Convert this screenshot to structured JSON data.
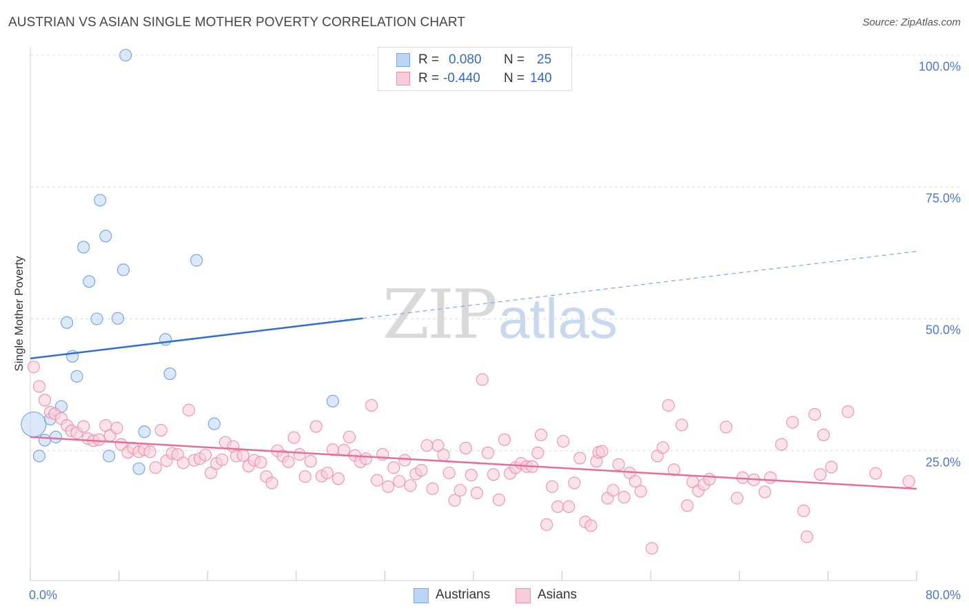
{
  "header": {
    "title": "AUSTRIAN VS ASIAN SINGLE MOTHER POVERTY CORRELATION CHART",
    "source": "Source: ZipAtlas.com"
  },
  "watermark": {
    "zip": "ZIP",
    "atlas": "atlas"
  },
  "stats": {
    "austrians": {
      "r_label": "R =",
      "r_value": "0.080",
      "n_label": "N =",
      "n_value": "25",
      "color": "#a8c8f0"
    },
    "asians": {
      "r_label": "R =",
      "r_value": "-0.440",
      "n_label": "N =",
      "n_value": "140",
      "color": "#f7b6c8"
    }
  },
  "legend": {
    "austrians": "Austrians",
    "asians": "Asians"
  },
  "chart_data": {
    "type": "scatter",
    "title": "AUSTRIAN VS ASIAN SINGLE MOTHER POVERTY CORRELATION CHART",
    "ylabel": "Single Mother Poverty",
    "xlabel": "",
    "xlim": [
      0,
      80
    ],
    "ylim": [
      0,
      105
    ],
    "x_tick_labels": {
      "min": "0.0%",
      "max": "80.0%"
    },
    "y_ticks": [
      {
        "value": 100,
        "label": "100.0%"
      },
      {
        "value": 75,
        "label": "75.0%"
      },
      {
        "value": 50,
        "label": "50.0%"
      },
      {
        "value": 25,
        "label": "25.0%"
      }
    ],
    "grid": "horizontal dashed",
    "legend_position": "bottom-center",
    "series": [
      {
        "name": "Austrians",
        "color": "#6f9fe0",
        "fill": "#bcd5f5",
        "trend": {
          "x0": 0,
          "y0": 42.5,
          "x1": 30,
          "y1": 50.1,
          "dashed_x1": 80,
          "dashed_y1": 62.8,
          "color": "#2f6fd0"
        },
        "points": [
          {
            "x": 0.3,
            "y": 30,
            "r": 18
          },
          {
            "x": 8.6,
            "y": 100
          },
          {
            "x": 6.3,
            "y": 72.5
          },
          {
            "x": 6.8,
            "y": 65.7
          },
          {
            "x": 4.8,
            "y": 63.6
          },
          {
            "x": 15,
            "y": 61.1
          },
          {
            "x": 8.4,
            "y": 59.3
          },
          {
            "x": 5.3,
            "y": 57.1
          },
          {
            "x": 6,
            "y": 50
          },
          {
            "x": 7.9,
            "y": 50.1
          },
          {
            "x": 3.3,
            "y": 49.3
          },
          {
            "x": 12.2,
            "y": 46.1
          },
          {
            "x": 3.8,
            "y": 42.9
          },
          {
            "x": 4.2,
            "y": 39.1
          },
          {
            "x": 12.6,
            "y": 39.6
          },
          {
            "x": 27.3,
            "y": 34.4
          },
          {
            "x": 2.8,
            "y": 33.4
          },
          {
            "x": 1.8,
            "y": 31
          },
          {
            "x": 16.6,
            "y": 30.1
          },
          {
            "x": 10.3,
            "y": 28.6
          },
          {
            "x": 2.3,
            "y": 27.6
          },
          {
            "x": 1.3,
            "y": 27
          },
          {
            "x": 0.8,
            "y": 24
          },
          {
            "x": 7.1,
            "y": 24
          },
          {
            "x": 9.8,
            "y": 21.6
          }
        ]
      },
      {
        "name": "Asians",
        "color": "#ee8fac",
        "fill": "#f9ccd9",
        "trend": {
          "x0": 0,
          "y0": 27.6,
          "x1": 80,
          "y1": 17.8,
          "color": "#e86c98"
        },
        "points": [
          {
            "x": 0.3,
            "y": 40.9
          },
          {
            "x": 0.8,
            "y": 37.2
          },
          {
            "x": 1.3,
            "y": 34.6
          },
          {
            "x": 1.8,
            "y": 32.3
          },
          {
            "x": 2.2,
            "y": 32
          },
          {
            "x": 2.8,
            "y": 31.1
          },
          {
            "x": 3.3,
            "y": 29.8
          },
          {
            "x": 3.7,
            "y": 28.8
          },
          {
            "x": 4.2,
            "y": 28.4
          },
          {
            "x": 4.8,
            "y": 29.6
          },
          {
            "x": 5.2,
            "y": 27.3
          },
          {
            "x": 5.7,
            "y": 26.9
          },
          {
            "x": 6.2,
            "y": 27.1
          },
          {
            "x": 6.8,
            "y": 29.8
          },
          {
            "x": 7.2,
            "y": 27.9
          },
          {
            "x": 7.8,
            "y": 29.3
          },
          {
            "x": 8.2,
            "y": 26.2
          },
          {
            "x": 8.8,
            "y": 24.7
          },
          {
            "x": 9.3,
            "y": 25.5
          },
          {
            "x": 9.8,
            "y": 24.8
          },
          {
            "x": 10.3,
            "y": 25.2
          },
          {
            "x": 10.8,
            "y": 24.8
          },
          {
            "x": 11.3,
            "y": 21.8
          },
          {
            "x": 11.8,
            "y": 28.9
          },
          {
            "x": 12.3,
            "y": 23.1
          },
          {
            "x": 12.8,
            "y": 24.5
          },
          {
            "x": 13.3,
            "y": 24.3
          },
          {
            "x": 13.8,
            "y": 22.7
          },
          {
            "x": 14.3,
            "y": 32.7
          },
          {
            "x": 14.8,
            "y": 23.2
          },
          {
            "x": 15.3,
            "y": 23.5
          },
          {
            "x": 15.8,
            "y": 24.2
          },
          {
            "x": 16.3,
            "y": 20.8
          },
          {
            "x": 16.8,
            "y": 22.6
          },
          {
            "x": 17.3,
            "y": 23.3
          },
          {
            "x": 17.6,
            "y": 26.6
          },
          {
            "x": 18.3,
            "y": 25.8
          },
          {
            "x": 18.6,
            "y": 24
          },
          {
            "x": 19.2,
            "y": 24.1
          },
          {
            "x": 19.7,
            "y": 22.1
          },
          {
            "x": 20.2,
            "y": 23.2
          },
          {
            "x": 20.8,
            "y": 22.8
          },
          {
            "x": 21.3,
            "y": 20.1
          },
          {
            "x": 21.8,
            "y": 18.9
          },
          {
            "x": 22.3,
            "y": 25
          },
          {
            "x": 22.8,
            "y": 24
          },
          {
            "x": 23.3,
            "y": 22.9
          },
          {
            "x": 23.8,
            "y": 27.5
          },
          {
            "x": 24.3,
            "y": 24.3
          },
          {
            "x": 24.8,
            "y": 20.1
          },
          {
            "x": 25.3,
            "y": 23
          },
          {
            "x": 25.8,
            "y": 29.6
          },
          {
            "x": 26.3,
            "y": 20.2
          },
          {
            "x": 26.8,
            "y": 20.8
          },
          {
            "x": 27.3,
            "y": 25.2
          },
          {
            "x": 27.8,
            "y": 19.7
          },
          {
            "x": 28.3,
            "y": 25.1
          },
          {
            "x": 28.8,
            "y": 27.6
          },
          {
            "x": 29.3,
            "y": 24.1
          },
          {
            "x": 29.8,
            "y": 22.9
          },
          {
            "x": 30.3,
            "y": 23.5
          },
          {
            "x": 30.8,
            "y": 33.6
          },
          {
            "x": 31.3,
            "y": 19.4
          },
          {
            "x": 31.8,
            "y": 24.3
          },
          {
            "x": 32.3,
            "y": 18.2
          },
          {
            "x": 32.8,
            "y": 21.8
          },
          {
            "x": 33.3,
            "y": 19.2
          },
          {
            "x": 33.8,
            "y": 23.2
          },
          {
            "x": 34.3,
            "y": 18.4
          },
          {
            "x": 34.8,
            "y": 20.6
          },
          {
            "x": 35.3,
            "y": 21.3
          },
          {
            "x": 35.8,
            "y": 26
          },
          {
            "x": 36.3,
            "y": 17.8
          },
          {
            "x": 36.8,
            "y": 26
          },
          {
            "x": 37.3,
            "y": 24.2
          },
          {
            "x": 37.8,
            "y": 20.8
          },
          {
            "x": 38.3,
            "y": 15.6
          },
          {
            "x": 38.8,
            "y": 17.5
          },
          {
            "x": 39.3,
            "y": 25.5
          },
          {
            "x": 39.8,
            "y": 20.4
          },
          {
            "x": 40.3,
            "y": 17
          },
          {
            "x": 40.8,
            "y": 38.5
          },
          {
            "x": 41.3,
            "y": 24.6
          },
          {
            "x": 41.8,
            "y": 20.5
          },
          {
            "x": 42.3,
            "y": 15.7
          },
          {
            "x": 42.8,
            "y": 27.1
          },
          {
            "x": 43.3,
            "y": 20.7
          },
          {
            "x": 43.8,
            "y": 21.8
          },
          {
            "x": 44.3,
            "y": 22.6
          },
          {
            "x": 44.8,
            "y": 22
          },
          {
            "x": 45.3,
            "y": 22
          },
          {
            "x": 45.8,
            "y": 24.6
          },
          {
            "x": 46.1,
            "y": 28
          },
          {
            "x": 46.6,
            "y": 11
          },
          {
            "x": 47.1,
            "y": 18.2
          },
          {
            "x": 47.6,
            "y": 14.4
          },
          {
            "x": 48.1,
            "y": 26.8
          },
          {
            "x": 48.6,
            "y": 14.4
          },
          {
            "x": 49.1,
            "y": 18.9
          },
          {
            "x": 49.6,
            "y": 23.6
          },
          {
            "x": 50.1,
            "y": 11.5
          },
          {
            "x": 50.6,
            "y": 10.8
          },
          {
            "x": 51.1,
            "y": 23
          },
          {
            "x": 51.3,
            "y": 24.7
          },
          {
            "x": 51.6,
            "y": 24.9
          },
          {
            "x": 52.1,
            "y": 16
          },
          {
            "x": 52.6,
            "y": 17.5
          },
          {
            "x": 53.1,
            "y": 22.4
          },
          {
            "x": 53.6,
            "y": 16.2
          },
          {
            "x": 54.1,
            "y": 20.8
          },
          {
            "x": 54.6,
            "y": 19.2
          },
          {
            "x": 55.1,
            "y": 17.3
          },
          {
            "x": 56.1,
            "y": 6.5
          },
          {
            "x": 56.6,
            "y": 24
          },
          {
            "x": 57.1,
            "y": 25.6
          },
          {
            "x": 57.6,
            "y": 33.6
          },
          {
            "x": 58.1,
            "y": 21.4
          },
          {
            "x": 58.8,
            "y": 29.9
          },
          {
            "x": 59.3,
            "y": 14.6
          },
          {
            "x": 59.8,
            "y": 19.1
          },
          {
            "x": 60.3,
            "y": 17.4
          },
          {
            "x": 60.8,
            "y": 18.6
          },
          {
            "x": 61.3,
            "y": 19.6
          },
          {
            "x": 62.8,
            "y": 29.5
          },
          {
            "x": 63.8,
            "y": 16
          },
          {
            "x": 64.3,
            "y": 19.9
          },
          {
            "x": 65.3,
            "y": 19.5
          },
          {
            "x": 66.3,
            "y": 17.2
          },
          {
            "x": 66.8,
            "y": 19.9
          },
          {
            "x": 67.8,
            "y": 26.2
          },
          {
            "x": 68.8,
            "y": 30.4
          },
          {
            "x": 69.8,
            "y": 13.6
          },
          {
            "x": 70.1,
            "y": 8.7
          },
          {
            "x": 70.8,
            "y": 31.9
          },
          {
            "x": 71.3,
            "y": 20.5
          },
          {
            "x": 71.6,
            "y": 28
          },
          {
            "x": 72.3,
            "y": 21.9
          },
          {
            "x": 73.8,
            "y": 32.4
          },
          {
            "x": 76.3,
            "y": 20.7
          },
          {
            "x": 79.3,
            "y": 19.2
          }
        ]
      }
    ]
  }
}
